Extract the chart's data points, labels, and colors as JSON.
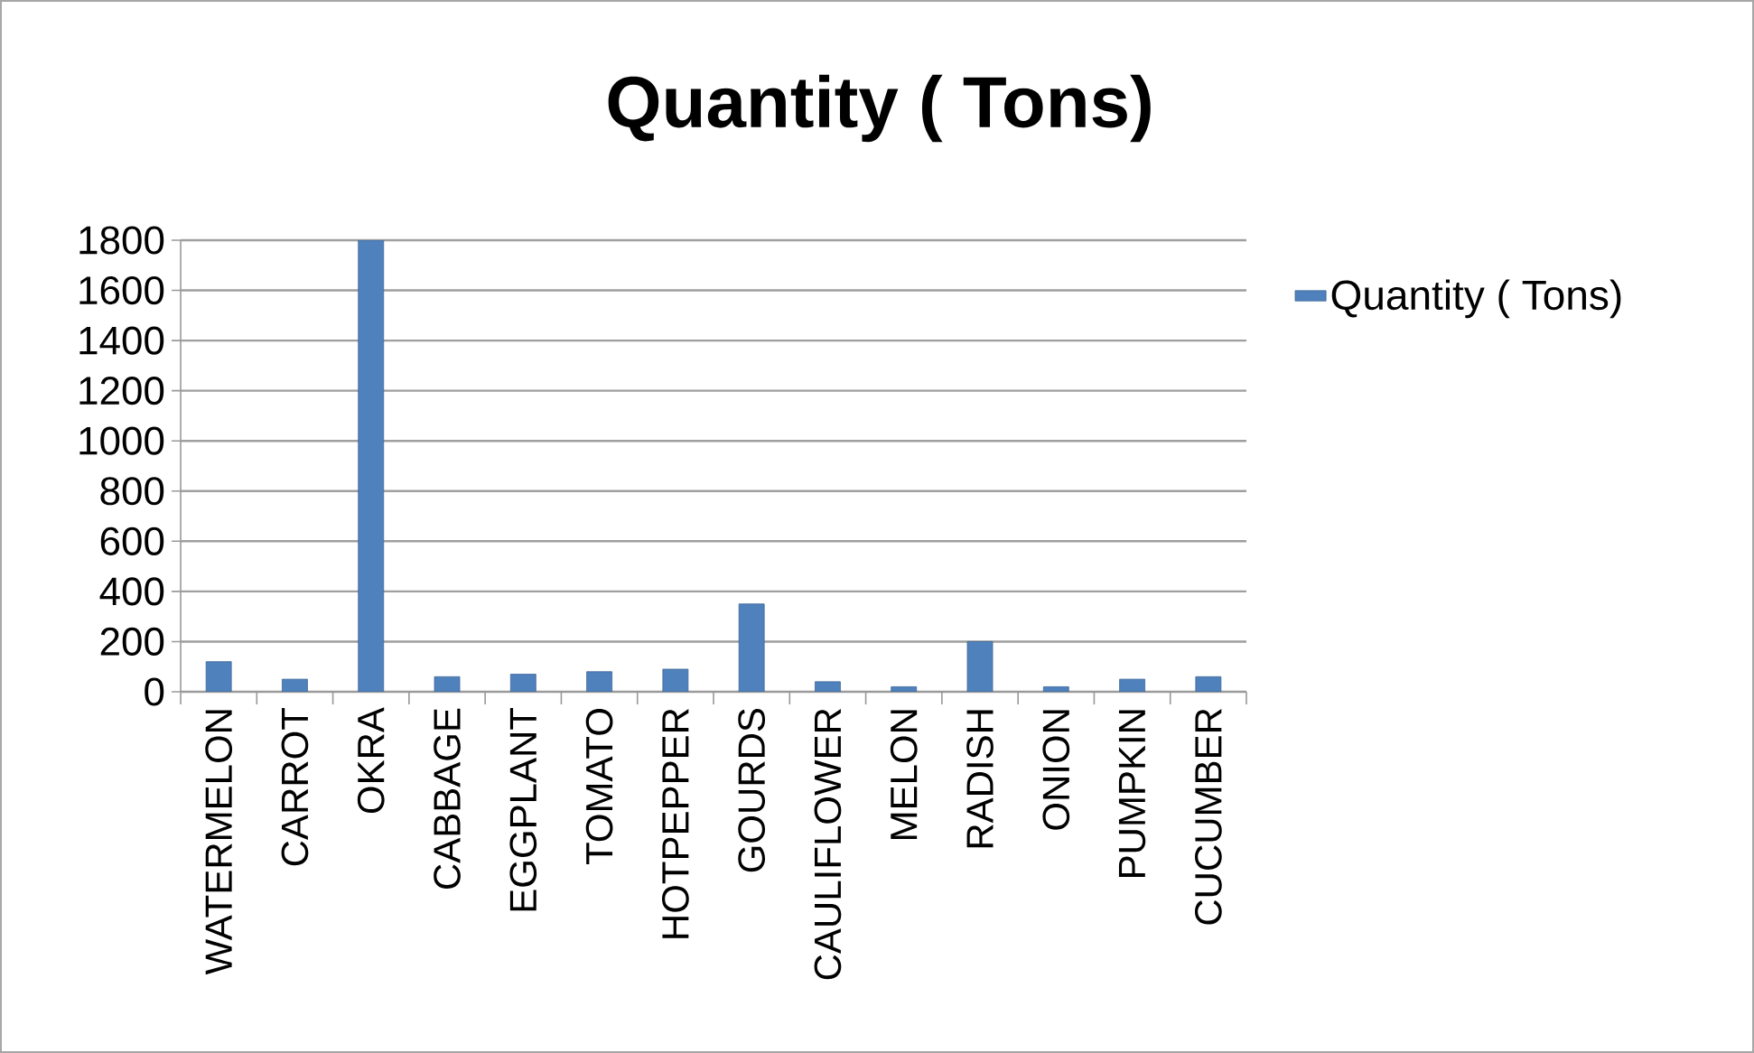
{
  "chart_data": {
    "type": "bar",
    "title": "Quantity ( Tons)",
    "categories": [
      "WATERMELON",
      "CARROT",
      "OKRA",
      "CABBAGE",
      "EGGPLANT",
      "TOMATO",
      "HOTPEPPER",
      "GOURDS",
      "CAULIFLOWER",
      "MELON",
      "RADISH",
      "ONION",
      "PUMPKIN",
      "CUCUMBER"
    ],
    "series": [
      {
        "name": "Quantity ( Tons)",
        "color": "#4f81bd",
        "values": [
          120,
          50,
          1800,
          60,
          70,
          80,
          90,
          350,
          40,
          20,
          200,
          20,
          50,
          60
        ]
      }
    ],
    "ylim": [
      0,
      1800
    ],
    "yticks": [
      0,
      200,
      400,
      600,
      800,
      1000,
      1200,
      1400,
      1600,
      1800
    ],
    "grid": "y",
    "legend": "right"
  }
}
